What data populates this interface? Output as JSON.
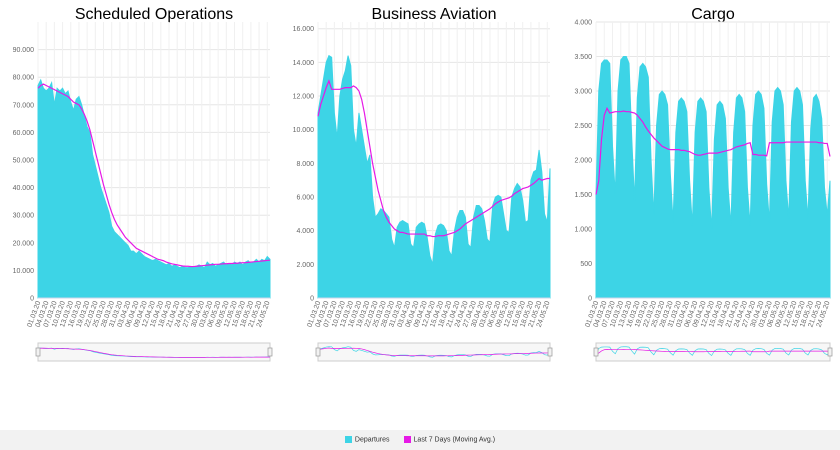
{
  "chart_data": [
    {
      "type": "area-line",
      "title": "Scheduled Operations",
      "grid": true,
      "categories": [
        "01.03.20",
        null,
        null,
        "04.03.20",
        null,
        null,
        "07.03.20",
        null,
        null,
        "10.03.20",
        null,
        null,
        "13.03.20",
        null,
        null,
        "16.03.20",
        null,
        null,
        "19.03.20",
        null,
        null,
        "22.03.20",
        null,
        null,
        "25.03.20",
        null,
        null,
        "28.03.20",
        null,
        null,
        "31.03.20",
        null,
        null,
        "03.04.20",
        null,
        null,
        "06.04.20",
        null,
        null,
        "09.04.20",
        null,
        null,
        "12.04.20",
        null,
        null,
        "15.04.20",
        null,
        null,
        "18.04.20",
        null,
        null,
        "21.04.20",
        null,
        null,
        "24.04.20",
        null,
        null,
        "27.04.20",
        null,
        null,
        "30.04.20",
        null,
        null,
        "03.05.20",
        null,
        null,
        "06.05.20",
        null,
        null,
        "09.05.20",
        null,
        null,
        "12.05.20",
        null,
        null,
        "15.05.20",
        null,
        null,
        "18.05.20",
        null,
        null,
        "21.05.20",
        null,
        null,
        "24.05.20",
        null
      ],
      "ylim": [
        0,
        100000
      ],
      "yticks": [
        0,
        {
          "value": 10000,
          "label": "10.000"
        },
        {
          "value": 20000,
          "label": "20.000"
        },
        {
          "value": 30000,
          "label": "30.000"
        },
        {
          "value": 40000,
          "label": "40.000"
        },
        {
          "value": 50000,
          "label": "50.000"
        },
        {
          "value": 60000,
          "label": "60.000"
        },
        {
          "value": 70000,
          "label": "70.000"
        },
        {
          "value": 80000,
          "label": "80.000"
        },
        {
          "value": 90000,
          "label": "90.000"
        }
      ],
      "series": [
        {
          "name": "Departures",
          "color": "#3dd4e6",
          "values": [
            77000,
            79000,
            76000,
            75000,
            76000,
            78000,
            70000,
            76000,
            75000,
            76000,
            74000,
            75000,
            71000,
            68000,
            72000,
            73000,
            70000,
            66000,
            62000,
            60000,
            52000,
            48000,
            44000,
            40000,
            37000,
            34000,
            31000,
            26000,
            24000,
            23000,
            22000,
            21000,
            20000,
            19000,
            17000,
            17000,
            16000,
            17000,
            16000,
            15000,
            14500,
            14000,
            13500,
            14000,
            13500,
            13000,
            12500,
            12000,
            12500,
            11500,
            12000,
            11500,
            11000,
            11500,
            11000,
            11000,
            11500,
            11000,
            11500,
            12000,
            11500,
            11000,
            13000,
            12000,
            12500,
            11500,
            12000,
            12500,
            13000,
            12000,
            12500,
            12000,
            13000,
            12500,
            13000,
            12000,
            13000,
            13500,
            12500,
            13000,
            14000,
            13000,
            14000,
            13500,
            15000,
            14000
          ]
        },
        {
          "name": "Last 7 Days (Moving Avg.)",
          "color": "#e619e6",
          "values": [
            76000,
            77000,
            77500,
            77000,
            76500,
            76000,
            75500,
            75000,
            74500,
            74000,
            73500,
            73000,
            72000,
            71000,
            70500,
            70000,
            68500,
            66500,
            64000,
            61000,
            57000,
            53000,
            49000,
            45000,
            41000,
            37500,
            34000,
            31000,
            28500,
            26500,
            25000,
            23500,
            22000,
            21000,
            20000,
            19000,
            18000,
            17500,
            17000,
            16500,
            16000,
            15500,
            15000,
            14500,
            14000,
            13800,
            13500,
            13000,
            12700,
            12400,
            12200,
            12000,
            11800,
            11600,
            11500,
            11500,
            11400,
            11400,
            11500,
            11600,
            11700,
            11800,
            11900,
            12000,
            12100,
            12200,
            12200,
            12300,
            12400,
            12400,
            12500,
            12500,
            12600,
            12600,
            12700,
            12800,
            12800,
            12900,
            13000,
            13100,
            13200,
            13300,
            13400,
            13500,
            13600,
            13700
          ]
        }
      ]
    },
    {
      "type": "area-line",
      "title": "Business Aviation",
      "grid": true,
      "categories": [
        "01.03.20",
        null,
        null,
        "04.03.20",
        null,
        null,
        "07.03.20",
        null,
        null,
        "10.03.20",
        null,
        null,
        "13.03.20",
        null,
        null,
        "16.03.20",
        null,
        null,
        "19.03.20",
        null,
        null,
        "22.03.20",
        null,
        null,
        "25.03.20",
        null,
        null,
        "28.03.20",
        null,
        null,
        "31.03.20",
        null,
        null,
        "03.04.20",
        null,
        null,
        "06.04.20",
        null,
        null,
        "09.04.20",
        null,
        null,
        "12.04.20",
        null,
        null,
        "15.04.20",
        null,
        null,
        "18.04.20",
        null,
        null,
        "21.04.20",
        null,
        null,
        "24.04.20",
        null,
        null,
        "27.04.20",
        null,
        null,
        "30.04.20",
        null,
        null,
        "03.05.20",
        null,
        null,
        "06.05.20",
        null,
        null,
        "09.05.20",
        null,
        null,
        "12.05.20",
        null,
        null,
        "15.05.20",
        null,
        null,
        "18.05.20",
        null,
        null,
        "21.05.20",
        null,
        null,
        "24.05.20",
        null
      ],
      "ylim": [
        0,
        16400
      ],
      "yticks": [
        0,
        {
          "value": 2000,
          "label": "2.000"
        },
        {
          "value": 4000,
          "label": "4.000"
        },
        {
          "value": 6000,
          "label": "6.000"
        },
        {
          "value": 8000,
          "label": "8.000"
        },
        {
          "value": 10000,
          "label": "10.000"
        },
        {
          "value": 12000,
          "label": "12.000"
        },
        {
          "value": 14000,
          "label": "14.000"
        },
        {
          "value": 16000,
          "label": "16.000"
        }
      ],
      "series": [
        {
          "name": "Departures",
          "color": "#3dd4e6",
          "values": [
            11000,
            12000,
            13000,
            14000,
            14400,
            14300,
            11000,
            9500,
            12000,
            13000,
            13500,
            14400,
            13800,
            10000,
            9000,
            11000,
            10000,
            9000,
            8000,
            8500,
            6000,
            4800,
            5000,
            5300,
            5200,
            5000,
            4800,
            3500,
            3000,
            4200,
            4500,
            4600,
            4500,
            4400,
            3200,
            3000,
            4200,
            4400,
            4500,
            4400,
            3600,
            2500,
            2000,
            3800,
            4300,
            4400,
            4300,
            4000,
            2800,
            2500,
            4000,
            4800,
            5200,
            5200,
            4800,
            3200,
            3000,
            4800,
            5500,
            5500,
            5300,
            4600,
            3500,
            3300,
            5500,
            6000,
            6100,
            6000,
            5000,
            4000,
            3900,
            6000,
            6500,
            6800,
            6600,
            5800,
            4500,
            4600,
            7000,
            7500,
            7600,
            8800,
            7500,
            5000,
            4500,
            7700
          ]
        },
        {
          "name": "Last 7 Days (Moving Avg.)",
          "color": "#e619e6",
          "values": [
            10800,
            11500,
            12000,
            12500,
            12900,
            12400,
            12400,
            12400,
            12400,
            12450,
            12500,
            12500,
            12500,
            12600,
            12500,
            12300,
            11800,
            11000,
            10000,
            9000,
            8000,
            7200,
            6400,
            5800,
            5200,
            4800,
            4500,
            4300,
            4100,
            4000,
            3900,
            3900,
            3850,
            3800,
            3800,
            3800,
            3800,
            3800,
            3800,
            3800,
            3700,
            3700,
            3650,
            3650,
            3700,
            3700,
            3700,
            3750,
            3800,
            3850,
            3900,
            4000,
            4100,
            4250,
            4400,
            4500,
            4600,
            4700,
            4800,
            4900,
            5000,
            5100,
            5200,
            5300,
            5450,
            5600,
            5700,
            5800,
            5850,
            5900,
            5950,
            6050,
            6200,
            6300,
            6400,
            6500,
            6550,
            6600,
            6700,
            6800,
            6950,
            7100,
            7000,
            7050,
            7100,
            7100
          ]
        }
      ]
    },
    {
      "type": "area-line",
      "title": "Cargo",
      "grid": true,
      "categories": [
        "01.03.20",
        null,
        null,
        "04.03.20",
        null,
        null,
        "07.03.20",
        null,
        null,
        "10.03.20",
        null,
        null,
        "13.03.20",
        null,
        null,
        "16.03.20",
        null,
        null,
        "19.03.20",
        null,
        null,
        "22.03.20",
        null,
        null,
        "25.03.20",
        null,
        null,
        "28.03.20",
        null,
        null,
        "31.03.20",
        null,
        null,
        "03.04.20",
        null,
        null,
        "06.04.20",
        null,
        null,
        "09.04.20",
        null,
        null,
        "12.04.20",
        null,
        null,
        "15.04.20",
        null,
        null,
        "18.04.20",
        null,
        null,
        "21.04.20",
        null,
        null,
        "24.04.20",
        null,
        null,
        "27.04.20",
        null,
        null,
        "30.04.20",
        null,
        null,
        "03.05.20",
        null,
        null,
        "06.05.20",
        null,
        null,
        "09.05.20",
        null,
        null,
        "12.05.20",
        null,
        null,
        "15.05.20",
        null,
        null,
        "18.05.20",
        null,
        null,
        "21.05.20",
        null,
        null,
        "24.05.20",
        null
      ],
      "ylim": [
        0,
        4000
      ],
      "yticks": [
        0,
        500,
        {
          "value": 1000,
          "label": "1.000"
        },
        {
          "value": 1500,
          "label": "1.500"
        },
        {
          "value": 2000,
          "label": "2.000"
        },
        {
          "value": 2500,
          "label": "2.500"
        },
        {
          "value": 3000,
          "label": "3.000"
        },
        {
          "value": 3500,
          "label": "3.500"
        },
        {
          "value": 4000,
          "label": "4.000"
        }
      ],
      "series": [
        {
          "name": "Departures",
          "color": "#3dd4e6",
          "values": [
            1500,
            3000,
            3400,
            3450,
            3450,
            3400,
            2200,
            1500,
            3000,
            3450,
            3500,
            3500,
            3400,
            2300,
            1400,
            2900,
            3350,
            3400,
            3350,
            3200,
            2000,
            1200,
            2500,
            2950,
            3000,
            2950,
            2800,
            1800,
            1100,
            2400,
            2850,
            2900,
            2850,
            2700,
            1700,
            1050,
            2400,
            2850,
            2900,
            2850,
            2700,
            1600,
            1000,
            2300,
            2800,
            2850,
            2800,
            2600,
            1600,
            1050,
            2400,
            2900,
            2950,
            2900,
            2700,
            1600,
            1050,
            2500,
            2950,
            3000,
            2950,
            2750,
            1650,
            1100,
            2550,
            3000,
            3050,
            3000,
            2800,
            1700,
            1150,
            2550,
            3000,
            3050,
            3000,
            2800,
            1700,
            1150,
            2450,
            2900,
            2950,
            2850,
            2600,
            1600,
            1200,
            1700
          ]
        },
        {
          "name": "Last 7 Days (Moving Avg.)",
          "color": "#e619e6",
          "values": [
            1500,
            1700,
            2300,
            2650,
            2750,
            2680,
            2690,
            2700,
            2700,
            2700,
            2710,
            2700,
            2700,
            2690,
            2680,
            2650,
            2600,
            2550,
            2480,
            2420,
            2370,
            2320,
            2280,
            2240,
            2200,
            2180,
            2160,
            2150,
            2150,
            2150,
            2150,
            2140,
            2140,
            2130,
            2120,
            2100,
            2080,
            2070,
            2070,
            2080,
            2090,
            2100,
            2100,
            2100,
            2100,
            2110,
            2120,
            2130,
            2140,
            2150,
            2170,
            2190,
            2200,
            2210,
            2220,
            2240,
            2250,
            2080,
            2080,
            2070,
            2070,
            2070,
            2060,
            2250,
            2250,
            2250,
            2250,
            2250,
            2250,
            2260,
            2260,
            2260,
            2260,
            2260,
            2260,
            2260,
            2260,
            2260,
            2260,
            2260,
            2260,
            2250,
            2250,
            2240,
            2240,
            2050
          ]
        }
      ]
    }
  ]
}
